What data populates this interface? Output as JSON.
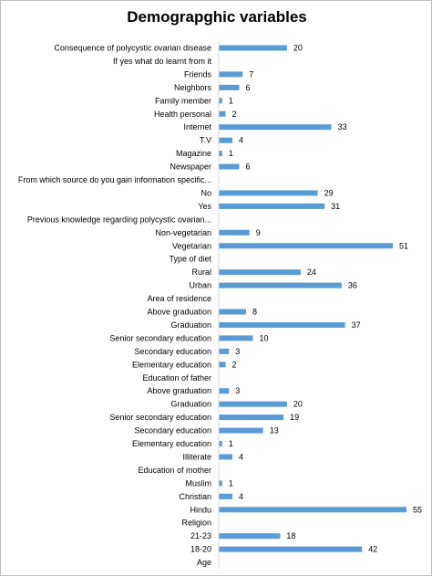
{
  "chart_data": {
    "type": "bar",
    "orientation": "horizontal",
    "title": "Demograpghic variables",
    "xlabel": "",
    "ylabel": "",
    "xlim": [
      0,
      55
    ],
    "grid": false,
    "legend": "none",
    "bar_color": "#5b9bd5",
    "categories": [
      "Consequence of polycystic ovarian disease",
      "If yes  what do learnt from it",
      "Friends",
      "Neighbors",
      "Family member",
      "Health personal",
      "Internet",
      "T.V",
      "Magazine",
      "Newspaper",
      "From which source do you gain information specific...",
      "No",
      "Yes",
      "Previous knowledge regarding polycystic ovarian...",
      "Non-vegetarian",
      "Vegetarian",
      "Type of diet",
      "Rural",
      "Urban",
      "Area of residence",
      "Above graduation",
      "Graduation",
      "Senior secondary education",
      "Secondary education",
      "Elementary education",
      "Education of father",
      "Above graduation",
      "Graduation",
      "Senior secondary education",
      "Secondary education",
      "Elementary education",
      "Illiterate",
      "Education of mother",
      "Muslim",
      "Christian",
      "Hindu",
      "Religion",
      "21-23",
      "18-20",
      "Age"
    ],
    "values": [
      20,
      null,
      7,
      6,
      1,
      2,
      33,
      4,
      1,
      6,
      null,
      29,
      31,
      null,
      9,
      51,
      null,
      24,
      36,
      null,
      8,
      37,
      10,
      3,
      2,
      null,
      3,
      20,
      19,
      13,
      1,
      4,
      null,
      1,
      4,
      55,
      null,
      18,
      42,
      null
    ]
  }
}
